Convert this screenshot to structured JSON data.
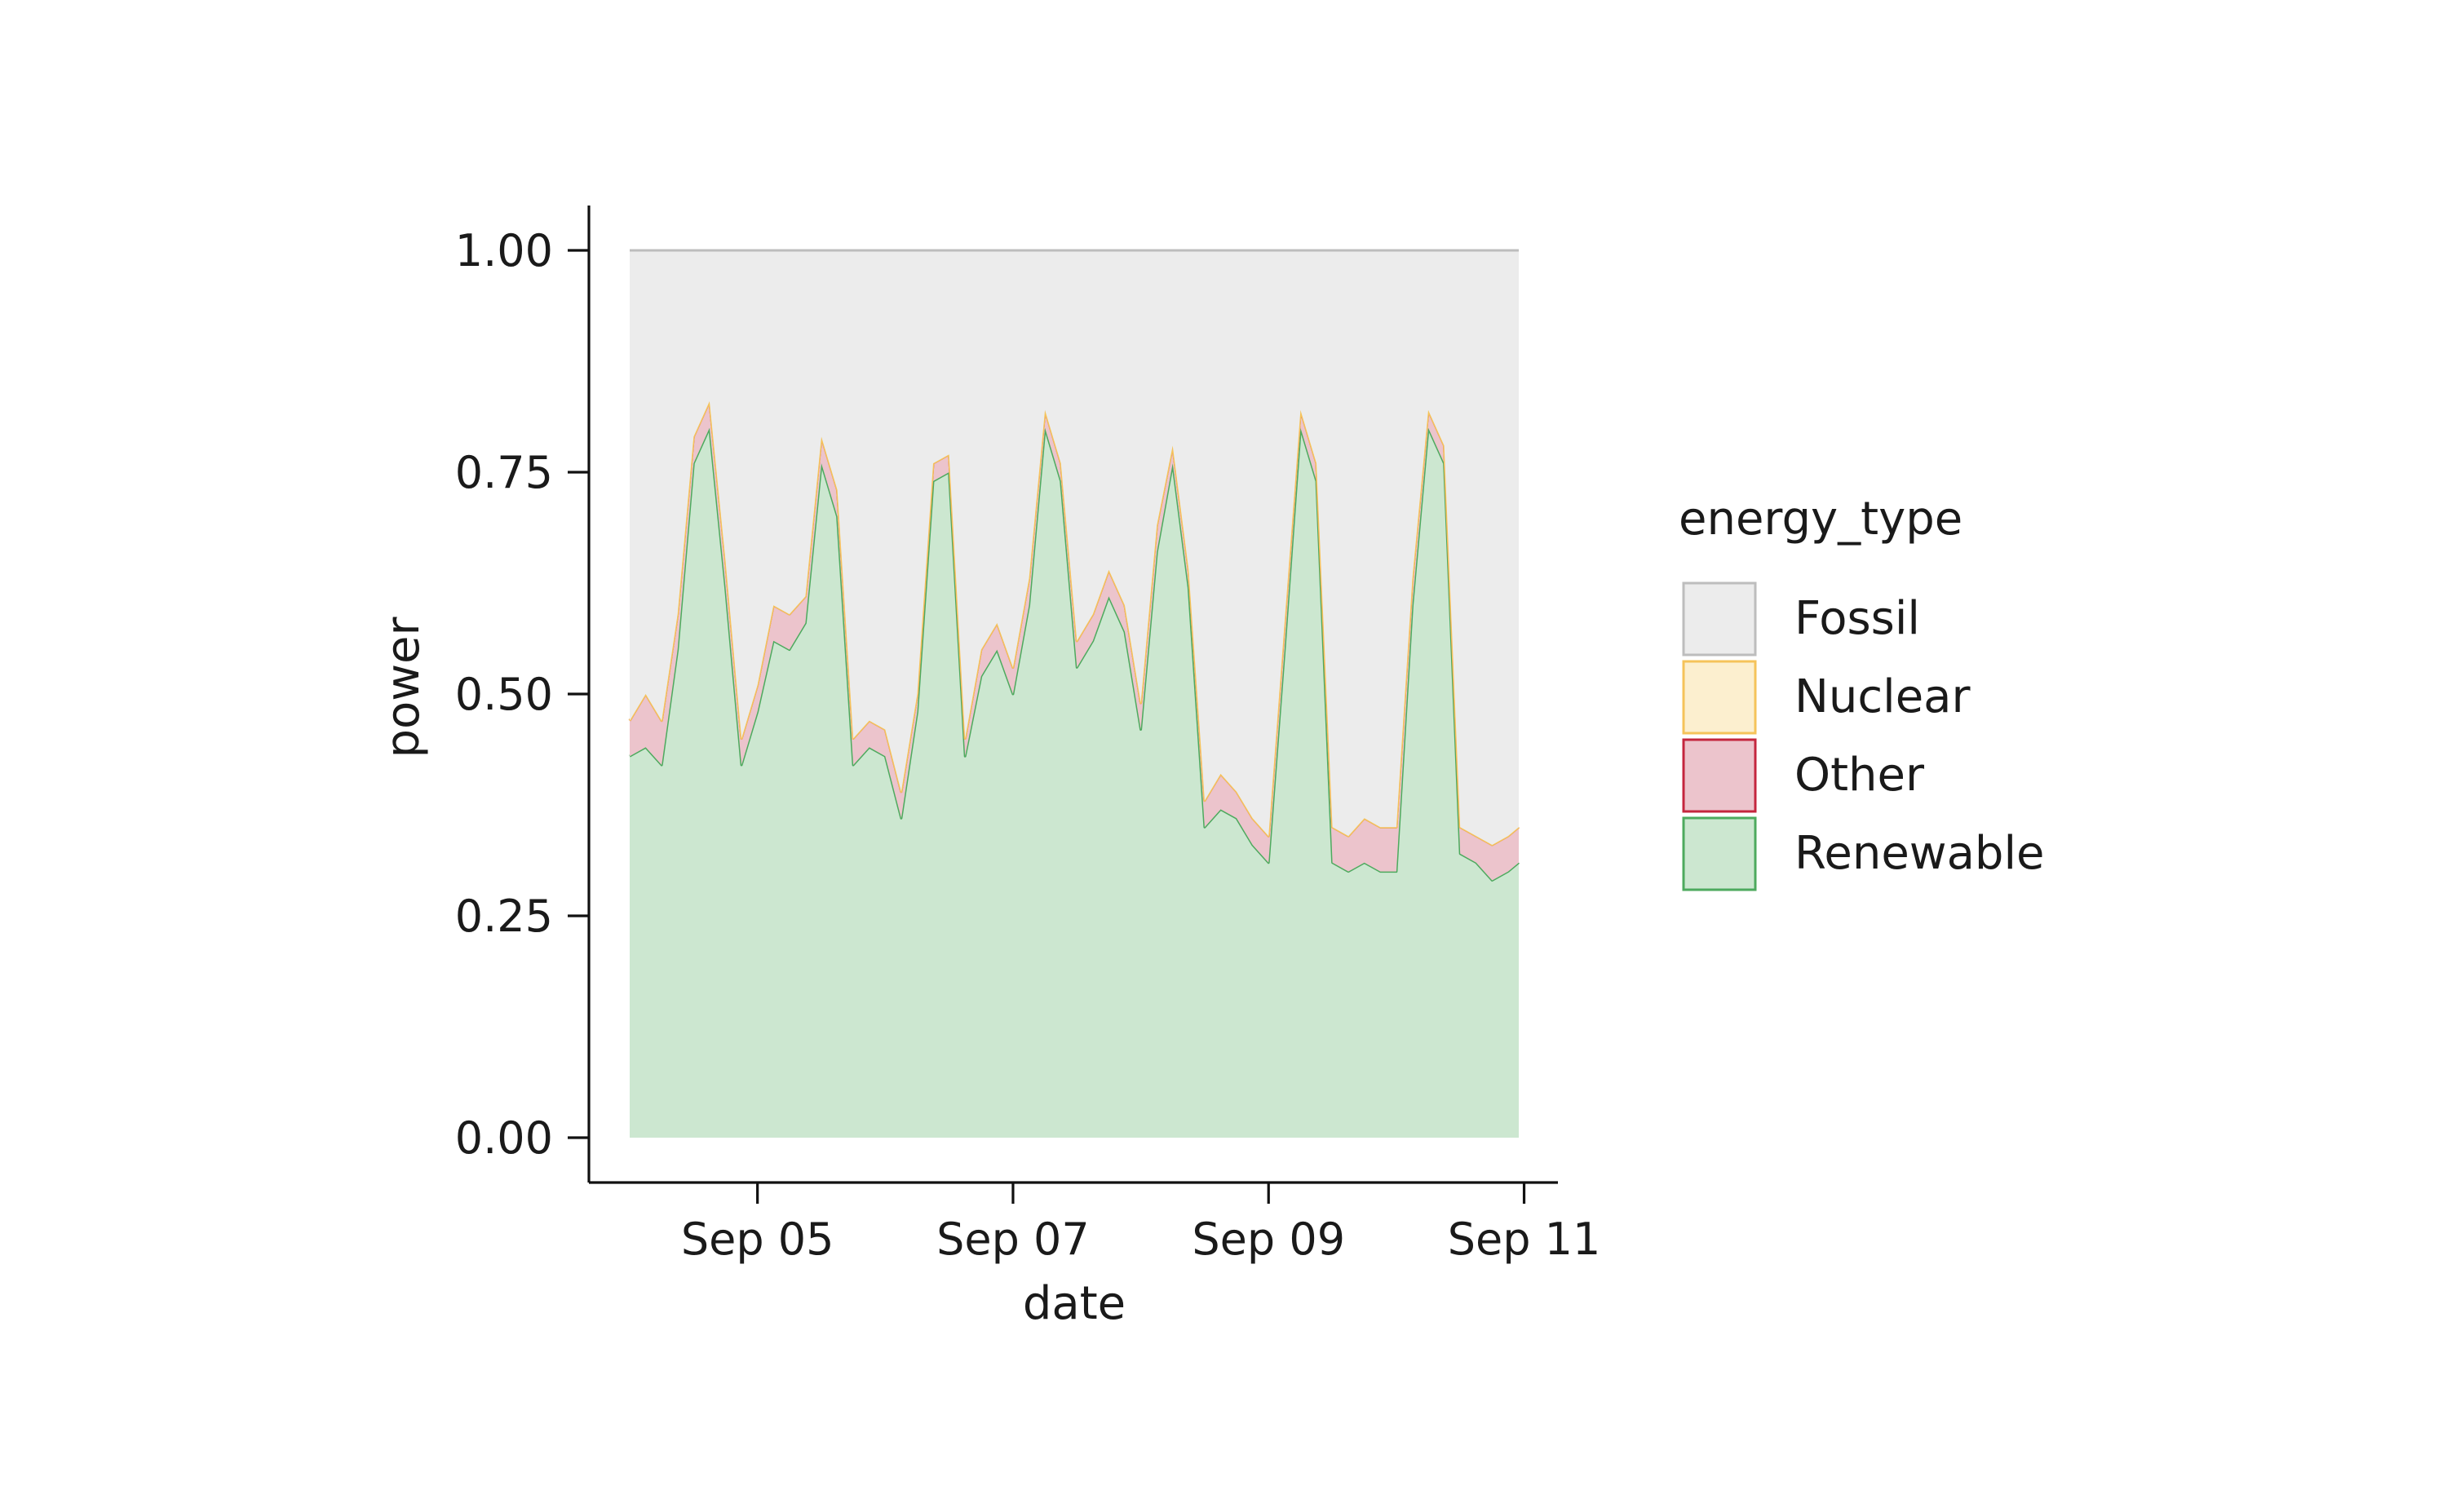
{
  "chart_data": {
    "type": "area",
    "stacked": true,
    "normalized": true,
    "title": "",
    "xlabel": "date",
    "ylabel": "power",
    "x_range": [
      "2024-09-04",
      "2024-09-10T23:00"
    ],
    "ylim": [
      0,
      1.0
    ],
    "x_ticks": [
      {
        "date": "2024-09-05",
        "label": "Sep 05"
      },
      {
        "date": "2024-09-07",
        "label": "Sep 07"
      },
      {
        "date": "2024-09-09",
        "label": "Sep 09"
      },
      {
        "date": "2024-09-11",
        "label": "Sep 11"
      }
    ],
    "y_ticks": [
      {
        "value": 0.0,
        "label": "0.00"
      },
      {
        "value": 0.25,
        "label": "0.25"
      },
      {
        "value": 0.5,
        "label": "0.50"
      },
      {
        "value": 0.75,
        "label": "0.75"
      },
      {
        "value": 1.0,
        "label": "1.00"
      }
    ],
    "grid": false,
    "legend": {
      "title": "energy_type",
      "position": "right",
      "entries": [
        {
          "name": "Fossil",
          "fill": "#ececec",
          "stroke": "#bdbdbd"
        },
        {
          "name": "Nuclear",
          "fill": "#fcefcf",
          "stroke": "#f5c35a"
        },
        {
          "name": "Other",
          "fill": "#ecc4cc",
          "stroke": "#c4263e"
        },
        {
          "name": "Renewable",
          "fill": "#cce7d0",
          "stroke": "#4daa5e"
        }
      ]
    },
    "x": [
      "2024-09-04T00:00",
      "2024-09-04T03:00",
      "2024-09-04T06:00",
      "2024-09-04T09:00",
      "2024-09-04T12:00",
      "2024-09-04T15:00",
      "2024-09-04T18:00",
      "2024-09-04T21:00",
      "2024-09-05T00:00",
      "2024-09-05T03:00",
      "2024-09-05T06:00",
      "2024-09-05T09:00",
      "2024-09-05T12:00",
      "2024-09-05T15:00",
      "2024-09-05T18:00",
      "2024-09-05T21:00",
      "2024-09-06T00:00",
      "2024-09-06T03:00",
      "2024-09-06T06:00",
      "2024-09-06T09:00",
      "2024-09-06T12:00",
      "2024-09-06T15:00",
      "2024-09-06T18:00",
      "2024-09-06T21:00",
      "2024-09-07T00:00",
      "2024-09-07T03:00",
      "2024-09-07T06:00",
      "2024-09-07T09:00",
      "2024-09-07T12:00",
      "2024-09-07T15:00",
      "2024-09-07T18:00",
      "2024-09-07T21:00",
      "2024-09-08T00:00",
      "2024-09-08T03:00",
      "2024-09-08T06:00",
      "2024-09-08T09:00",
      "2024-09-08T12:00",
      "2024-09-08T15:00",
      "2024-09-08T18:00",
      "2024-09-08T21:00",
      "2024-09-09T00:00",
      "2024-09-09T03:00",
      "2024-09-09T06:00",
      "2024-09-09T09:00",
      "2024-09-09T12:00",
      "2024-09-09T15:00",
      "2024-09-09T18:00",
      "2024-09-09T21:00",
      "2024-09-10T00:00",
      "2024-09-10T03:00",
      "2024-09-10T06:00",
      "2024-09-10T09:00",
      "2024-09-10T12:00",
      "2024-09-10T15:00",
      "2024-09-10T18:00",
      "2024-09-10T21:00",
      "2024-09-10T23:00"
    ],
    "series": [
      {
        "name": "Renewable",
        "values": [
          0.43,
          0.44,
          0.42,
          0.55,
          0.76,
          0.8,
          0.62,
          0.42,
          0.48,
          0.56,
          0.55,
          0.58,
          0.76,
          0.7,
          0.42,
          0.44,
          0.43,
          0.36,
          0.48,
          0.74,
          0.75,
          0.43,
          0.52,
          0.55,
          0.5,
          0.6,
          0.8,
          0.74,
          0.53,
          0.56,
          0.61,
          0.57,
          0.46,
          0.66,
          0.76,
          0.62,
          0.35,
          0.37,
          0.36,
          0.33,
          0.31,
          0.55,
          0.8,
          0.74,
          0.31,
          0.3,
          0.31,
          0.3,
          0.3,
          0.6,
          0.8,
          0.76,
          0.32,
          0.31,
          0.29,
          0.3,
          0.31
        ]
      },
      {
        "name": "Other",
        "values": [
          0.04,
          0.06,
          0.05,
          0.04,
          0.03,
          0.03,
          0.03,
          0.03,
          0.03,
          0.04,
          0.04,
          0.03,
          0.03,
          0.03,
          0.03,
          0.03,
          0.03,
          0.03,
          0.02,
          0.02,
          0.02,
          0.02,
          0.03,
          0.03,
          0.03,
          0.03,
          0.02,
          0.02,
          0.03,
          0.03,
          0.03,
          0.03,
          0.03,
          0.03,
          0.02,
          0.02,
          0.03,
          0.04,
          0.03,
          0.03,
          0.03,
          0.03,
          0.02,
          0.02,
          0.04,
          0.04,
          0.05,
          0.05,
          0.05,
          0.03,
          0.02,
          0.02,
          0.03,
          0.03,
          0.04,
          0.04,
          0.04
        ]
      },
      {
        "name": "Nuclear",
        "values": [
          0,
          0,
          0,
          0,
          0,
          0,
          0,
          0,
          0,
          0,
          0,
          0,
          0,
          0,
          0,
          0,
          0,
          0,
          0,
          0,
          0,
          0,
          0,
          0,
          0,
          0,
          0,
          0,
          0,
          0,
          0,
          0,
          0,
          0,
          0,
          0,
          0,
          0,
          0,
          0,
          0,
          0,
          0,
          0,
          0,
          0,
          0,
          0,
          0,
          0,
          0,
          0,
          0,
          0,
          0,
          0,
          0
        ]
      },
      {
        "name": "Fossil",
        "values": [
          0.53,
          0.5,
          0.53,
          0.41,
          0.21,
          0.17,
          0.35,
          0.55,
          0.49,
          0.4,
          0.41,
          0.39,
          0.21,
          0.27,
          0.55,
          0.53,
          0.54,
          0.61,
          0.5,
          0.24,
          0.23,
          0.55,
          0.45,
          0.42,
          0.47,
          0.37,
          0.18,
          0.24,
          0.44,
          0.41,
          0.36,
          0.4,
          0.51,
          0.31,
          0.22,
          0.36,
          0.62,
          0.59,
          0.61,
          0.64,
          0.66,
          0.42,
          0.18,
          0.24,
          0.65,
          0.66,
          0.64,
          0.65,
          0.65,
          0.37,
          0.18,
          0.22,
          0.65,
          0.66,
          0.67,
          0.66,
          0.65
        ]
      }
    ]
  }
}
